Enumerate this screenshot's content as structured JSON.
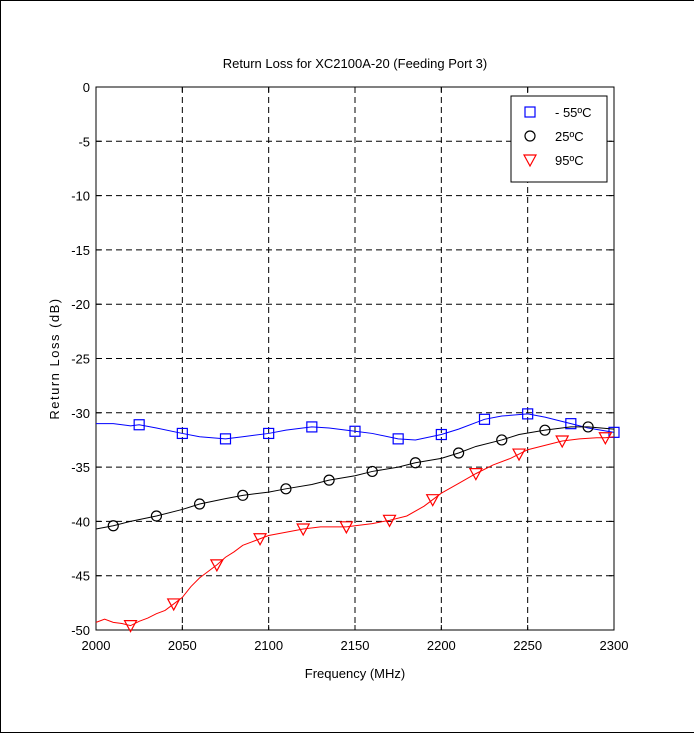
{
  "chart_data": {
    "type": "line",
    "title": "Return Loss for XC2100A-20 (Feeding Port 3)",
    "xlabel": "Frequency (MHz)",
    "ylabel": "Return Loss (dB)",
    "xlim": [
      2000,
      2300
    ],
    "ylim": [
      -50,
      0
    ],
    "xticks": [
      2000,
      2050,
      2100,
      2150,
      2200,
      2250,
      2300
    ],
    "yticks": [
      0,
      -5,
      -10,
      -15,
      -20,
      -25,
      -30,
      -35,
      -40,
      -45,
      -50
    ],
    "grid": true,
    "legend_position": "top-right",
    "series": [
      {
        "name": "- 55ºC",
        "color": "#0000ff",
        "marker": "square",
        "x": [
          2000,
          2010,
          2020,
          2025,
          2035,
          2050,
          2060,
          2075,
          2085,
          2100,
          2110,
          2125,
          2135,
          2150,
          2160,
          2175,
          2185,
          2200,
          2210,
          2225,
          2235,
          2250,
          2260,
          2275,
          2285,
          2300
        ],
        "y": [
          -31.0,
          -31.0,
          -31.2,
          -31.1,
          -31.4,
          -31.9,
          -32.2,
          -32.4,
          -32.2,
          -31.9,
          -31.6,
          -31.3,
          -31.4,
          -31.7,
          -31.9,
          -32.4,
          -32.5,
          -32.0,
          -31.5,
          -30.6,
          -30.3,
          -30.1,
          -30.4,
          -31.0,
          -31.4,
          -31.8
        ],
        "marker_x": [
          2025,
          2050,
          2075,
          2100,
          2125,
          2150,
          2175,
          2200,
          2225,
          2250,
          2275,
          2300
        ]
      },
      {
        "name": "25ºC",
        "color": "#000000",
        "marker": "circle",
        "x": [
          2000,
          2010,
          2020,
          2035,
          2050,
          2060,
          2075,
          2085,
          2100,
          2110,
          2125,
          2135,
          2150,
          2160,
          2175,
          2185,
          2200,
          2210,
          2220,
          2235,
          2245,
          2260,
          2275,
          2285,
          2300
        ],
        "y": [
          -40.7,
          -40.4,
          -40.0,
          -39.5,
          -38.9,
          -38.4,
          -37.9,
          -37.6,
          -37.3,
          -37.0,
          -36.6,
          -36.2,
          -35.8,
          -35.4,
          -35.0,
          -34.6,
          -34.2,
          -33.7,
          -33.1,
          -32.5,
          -32.0,
          -31.6,
          -31.3,
          -31.3,
          -31.5
        ],
        "marker_x": [
          2010,
          2035,
          2060,
          2085,
          2110,
          2135,
          2160,
          2185,
          2210,
          2235,
          2260,
          2285
        ]
      },
      {
        "name": "95ºC",
        "color": "#ff0000",
        "marker": "triangle-down",
        "x": [
          2000,
          2005,
          2010,
          2015,
          2020,
          2025,
          2030,
          2035,
          2040,
          2045,
          2050,
          2055,
          2060,
          2065,
          2070,
          2075,
          2080,
          2085,
          2090,
          2095,
          2100,
          2110,
          2120,
          2130,
          2140,
          2145,
          2150,
          2160,
          2170,
          2180,
          2190,
          2195,
          2200,
          2210,
          2220,
          2230,
          2240,
          2245,
          2250,
          2260,
          2270,
          2280,
          2290,
          2295,
          2300
        ],
        "y": [
          -49.3,
          -49.0,
          -49.3,
          -49.4,
          -49.6,
          -49.2,
          -48.9,
          -48.5,
          -48.2,
          -47.6,
          -47.0,
          -46.0,
          -45.2,
          -44.6,
          -44.0,
          -43.3,
          -42.8,
          -42.2,
          -41.9,
          -41.6,
          -41.3,
          -41.0,
          -40.7,
          -40.5,
          -40.5,
          -40.5,
          -40.4,
          -40.2,
          -39.9,
          -39.5,
          -38.6,
          -38.0,
          -37.4,
          -36.5,
          -35.6,
          -34.8,
          -34.2,
          -33.8,
          -33.4,
          -33.0,
          -32.6,
          -32.4,
          -32.3,
          -32.3,
          -32.2
        ],
        "marker_x": [
          2020,
          2045,
          2070,
          2095,
          2120,
          2145,
          2170,
          2195,
          2220,
          2245,
          2270,
          2295
        ]
      }
    ]
  }
}
